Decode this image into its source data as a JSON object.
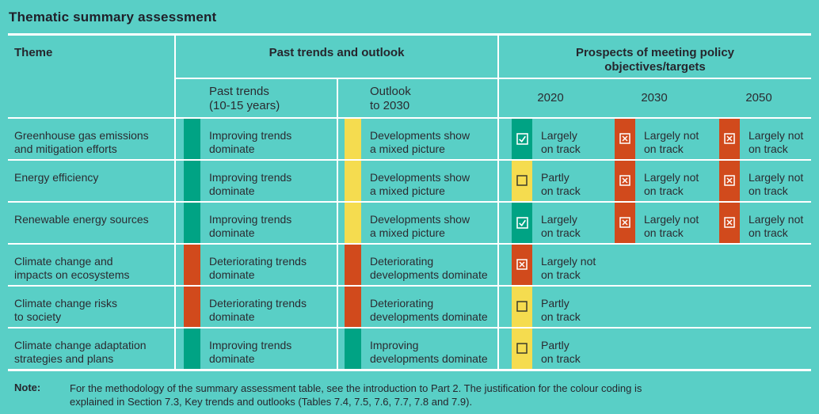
{
  "title": "Thematic summary assessment",
  "colors": {
    "background": "#59CFC6",
    "line": "#FFFFFF",
    "text": "#2B2B31",
    "improving": "#00A384",
    "mixed": "#F5DC4F",
    "deteriorating": "#D14A1C",
    "on_track": "#00A384",
    "partly_on_track": "#F5DC4F",
    "not_on_track": "#D14A1C"
  },
  "table": {
    "columns": {
      "theme": "Theme",
      "group_past": "Past trends and outlook",
      "group_prospects": "Prospects of meeting policy\nobjectives/targets",
      "sub_past": "Past trends\n(10-15 years)",
      "sub_outlook": "Outlook\nto 2030",
      "years": [
        "2020",
        "2030",
        "2050"
      ]
    },
    "rows": [
      {
        "theme": "Greenhouse gas emissions\nand mitigation efforts",
        "past_trends": {
          "status": "improving",
          "label": "Improving trends\ndominate"
        },
        "outlook": {
          "status": "mixed",
          "label": "Developments show\na mixed picture"
        },
        "prospects": {
          "2020": {
            "status": "on_track",
            "icon": "checked",
            "label": "Largely\non track"
          },
          "2030": {
            "status": "not_on_track",
            "icon": "crossed",
            "label": "Largely not\non track"
          },
          "2050": {
            "status": "not_on_track",
            "icon": "crossed",
            "label": "Largely not\non track"
          }
        }
      },
      {
        "theme": "Energy efficiency",
        "past_trends": {
          "status": "improving",
          "label": "Improving trends\ndominate"
        },
        "outlook": {
          "status": "mixed",
          "label": "Developments show\na mixed picture"
        },
        "prospects": {
          "2020": {
            "status": "partly_on_track",
            "icon": "empty",
            "label": "Partly\non track"
          },
          "2030": {
            "status": "not_on_track",
            "icon": "crossed",
            "label": "Largely not\non track"
          },
          "2050": {
            "status": "not_on_track",
            "icon": "crossed",
            "label": "Largely not\non track"
          }
        }
      },
      {
        "theme": "Renewable energy sources",
        "past_trends": {
          "status": "improving",
          "label": "Improving trends\ndominate"
        },
        "outlook": {
          "status": "mixed",
          "label": "Developments show\na mixed picture"
        },
        "prospects": {
          "2020": {
            "status": "on_track",
            "icon": "checked",
            "label": "Largely\non track"
          },
          "2030": {
            "status": "not_on_track",
            "icon": "crossed",
            "label": "Largely not\non track"
          },
          "2050": {
            "status": "not_on_track",
            "icon": "crossed",
            "label": "Largely not\non track"
          }
        }
      },
      {
        "theme": "Climate change and\nimpacts on ecosystems",
        "past_trends": {
          "status": "deteriorating",
          "label": "Deteriorating trends\ndominate"
        },
        "outlook": {
          "status": "deteriorating",
          "label": "Deteriorating\ndevelopments dominate"
        },
        "prospects": {
          "2020": {
            "status": "not_on_track",
            "icon": "crossed",
            "label": "Largely not\non track"
          }
        }
      },
      {
        "theme": "Climate change risks\nto society",
        "past_trends": {
          "status": "deteriorating",
          "label": "Deteriorating trends\ndominate"
        },
        "outlook": {
          "status": "deteriorating",
          "label": "Deteriorating\ndevelopments dominate"
        },
        "prospects": {
          "2020": {
            "status": "partly_on_track",
            "icon": "empty",
            "label": "Partly\non track"
          }
        }
      },
      {
        "theme": "Climate change adaptation\nstrategies and plans",
        "past_trends": {
          "status": "improving",
          "label": "Improving trends\ndominate"
        },
        "outlook": {
          "status": "improving",
          "label": "Improving\ndevelopments dominate"
        },
        "prospects": {
          "2020": {
            "status": "partly_on_track",
            "icon": "empty",
            "label": "Partly\non track"
          }
        }
      }
    ]
  },
  "note": {
    "label": "Note:",
    "text": "For the methodology of the summary assessment table, see the introduction to Part 2. The justification for the colour coding is\nexplained in Section 7.3, Key trends and outlooks (Tables 7.4, 7.5, 7.6, 7.7, 7.8 and 7.9)."
  }
}
